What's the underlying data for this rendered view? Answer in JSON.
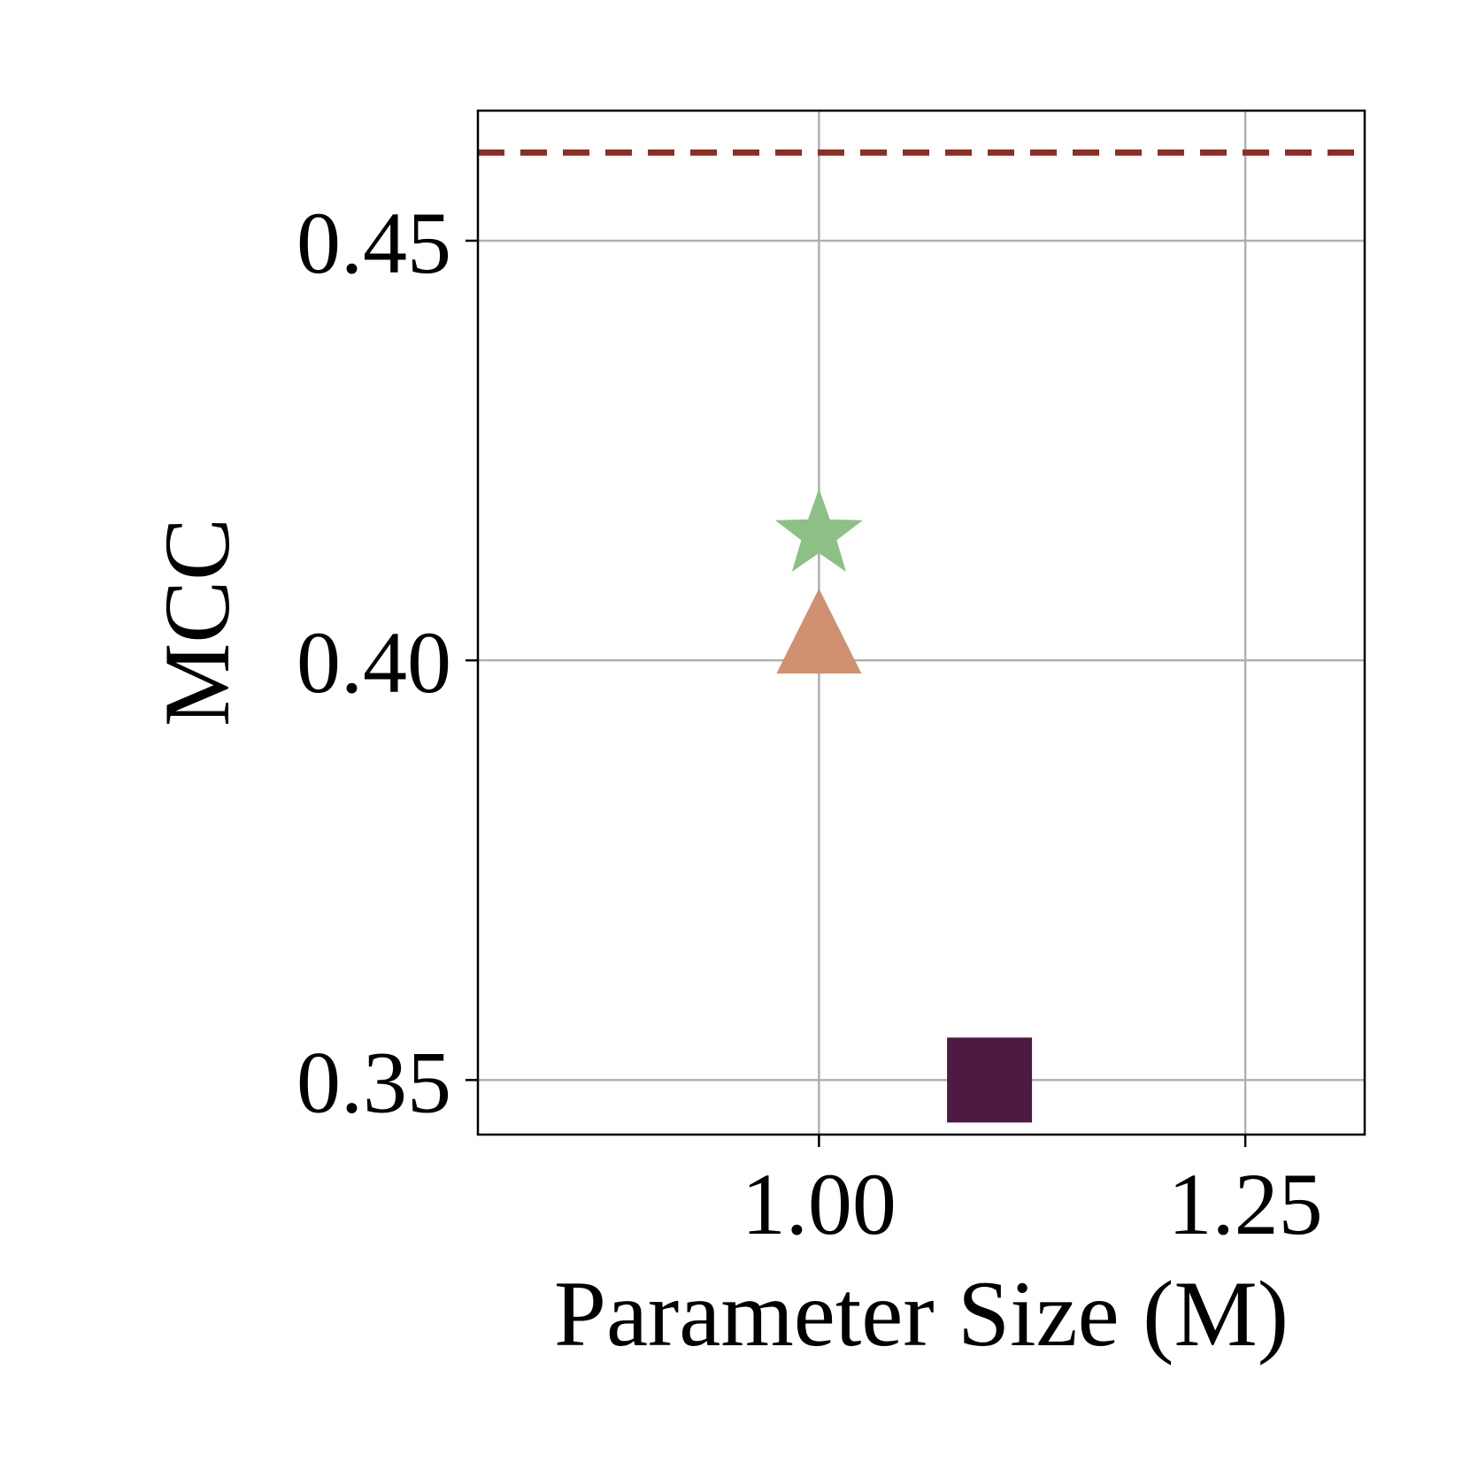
{
  "chart_data": {
    "type": "scatter",
    "title": "",
    "xlabel": "Parameter Size (M)",
    "ylabel": "MCC",
    "xlim": [
      0.8,
      1.32
    ],
    "ylim": [
      0.3435,
      0.4655
    ],
    "xticks": [
      1.0,
      1.25
    ],
    "xtick_labels": [
      "1.00",
      "1.25"
    ],
    "yticks": [
      0.35,
      0.4,
      0.45
    ],
    "ytick_labels": [
      "0.35",
      "0.40",
      "0.45"
    ],
    "grid": true,
    "legend": "none",
    "reference_line": {
      "y": 0.4605,
      "style": "dashed",
      "color": "#8b2e24"
    },
    "series": [
      {
        "marker": "star",
        "color": "#8cc084",
        "points": [
          {
            "x": 1.0,
            "y": 0.415
          }
        ]
      },
      {
        "marker": "triangle",
        "color": "#cf9070",
        "points": [
          {
            "x": 1.0,
            "y": 0.4035
          }
        ]
      },
      {
        "marker": "square",
        "color": "#4e1a44",
        "points": [
          {
            "x": 1.1,
            "y": 0.35
          }
        ]
      }
    ]
  }
}
